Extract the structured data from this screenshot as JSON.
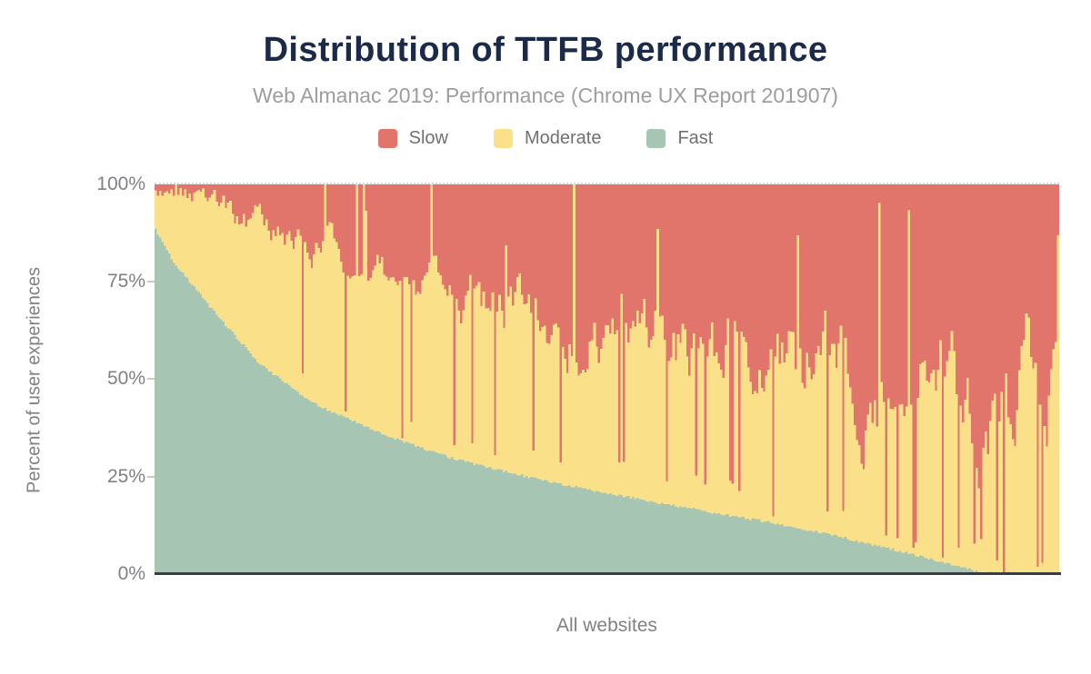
{
  "header": {
    "title": "Distribution of TTFB performance",
    "subtitle": "Web Almanac 2019: Performance (Chrome UX Report 201907)"
  },
  "legend": {
    "items": [
      {
        "label": "Slow",
        "color": "#e1756c"
      },
      {
        "label": "Moderate",
        "color": "#fbe08a"
      },
      {
        "label": "Fast",
        "color": "#a6c6b3"
      }
    ]
  },
  "axes": {
    "y": {
      "label": "Percent of user experiences",
      "ticks": [
        "100%",
        "75%",
        "50%",
        "25%",
        "0%"
      ]
    },
    "x": {
      "label": "All websites"
    }
  },
  "colors": {
    "title_text": "#1b2a49",
    "subtitle_text": "#9d9d9d",
    "axis_text": "#7f8184",
    "legend_text": "#6e7072",
    "axis_line": "#3a3d40",
    "gridline_dotted": "#d8d8d8",
    "background": "#ffffff"
  },
  "chart_data": {
    "type": "bar",
    "subtype": "stacked-percentage-distribution",
    "title": "Distribution of TTFB performance",
    "subtitle": "Web Almanac 2019: Performance (Chrome UX Report 201907)",
    "xlabel": "All websites",
    "ylabel": "Percent of user experiences",
    "ylim": [
      0,
      100
    ],
    "y_ticks_pct": [
      0,
      25,
      50,
      75,
      100
    ],
    "legend_position": "top-center",
    "grid": "dotted line at 100% only, solid dark baseline at 0%",
    "n_bars": 400,
    "bar_order": "websites sorted by Fast share, descending",
    "series": [
      {
        "name": "Slow",
        "color": "#e1756c",
        "stack_position": "top"
      },
      {
        "name": "Moderate",
        "color": "#fbe08a",
        "stack_position": "middle"
      },
      {
        "name": "Fast",
        "color": "#a6c6b3",
        "stack_position": "bottom"
      }
    ],
    "fast_share_anchors": [
      [
        0,
        88.5
      ],
      [
        0.02,
        80
      ],
      [
        0.045,
        73
      ],
      [
        0.07,
        66
      ],
      [
        0.115,
        54
      ],
      [
        0.177,
        43.6
      ],
      [
        0.25,
        36
      ],
      [
        0.33,
        29.6
      ],
      [
        0.42,
        24.5
      ],
      [
        0.5,
        20.7
      ],
      [
        0.6,
        16.5
      ],
      [
        0.68,
        13.3
      ],
      [
        0.75,
        10
      ],
      [
        0.83,
        5.6
      ],
      [
        0.915,
        0.4
      ],
      [
        1,
        0
      ]
    ],
    "fast_plus_moderate_median_anchors": [
      [
        0,
        99
      ],
      [
        0.05,
        96
      ],
      [
        0.1,
        91
      ],
      [
        0.15,
        86
      ],
      [
        0.2,
        82
      ],
      [
        0.3,
        74
      ],
      [
        0.4,
        67
      ],
      [
        0.5,
        63
      ],
      [
        0.6,
        59
      ],
      [
        0.7,
        55
      ],
      [
        0.8,
        49
      ],
      [
        0.9,
        45
      ],
      [
        1,
        45
      ]
    ],
    "noise": {
      "seed": 13,
      "smooth_amp_base": 5,
      "smooth_amp_slope": 23,
      "smooth_persistence": 0.78,
      "deep_spike_prob_base": 0.02,
      "deep_spike_prob_slope": 0.13,
      "deep_spike_band": 10,
      "tall_spike_prob": 0.05,
      "tall_spike_base": 55,
      "tall_spike_range": 35,
      "left_guard_t": 0.03,
      "left_guard_min": 96,
      "fast_jitter": 0.7
    },
    "right_edge_spike_pct": 87
  }
}
